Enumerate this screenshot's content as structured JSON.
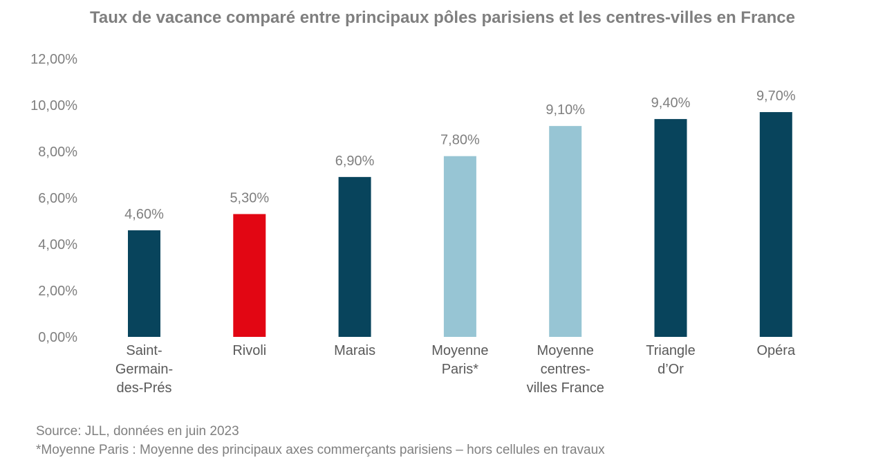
{
  "chart_data": {
    "type": "bar",
    "title": "Taux de vacance comparé entre principaux pôles parisiens et les centres-villes en France",
    "xlabel": "",
    "ylabel": "",
    "ylim": [
      0,
      12
    ],
    "yticks": [
      0,
      2,
      4,
      6,
      8,
      10,
      12
    ],
    "ytick_labels": [
      "0,00%",
      "2,00%",
      "4,00%",
      "6,00%",
      "8,00%",
      "10,00%",
      "12,00%"
    ],
    "grid": false,
    "categories": [
      [
        "Saint-",
        "Germain-",
        "des-Prés"
      ],
      [
        "Rivoli"
      ],
      [
        "Marais"
      ],
      [
        "Moyenne",
        "Paris*"
      ],
      [
        "Moyenne",
        "centres-",
        "villes France"
      ],
      [
        "Triangle",
        "d’Or"
      ],
      [
        "Opéra"
      ]
    ],
    "values": [
      4.6,
      5.3,
      6.9,
      7.8,
      9.1,
      9.4,
      9.7
    ],
    "data_labels": [
      "4,60%",
      "5,30%",
      "6,90%",
      "7,80%",
      "9,10%",
      "9,40%",
      "9,70%"
    ],
    "colors": [
      "#08445c",
      "#e20613",
      "#08445c",
      "#97c5d4",
      "#97c5d4",
      "#08445c",
      "#08445c"
    ]
  },
  "notes": {
    "source": "Source: JLL, données en juin 2023",
    "footnote": "*Moyenne Paris : Moyenne des principaux axes commerçants parisiens – hors cellules en travaux"
  },
  "style": {
    "text_color": "#7f7f7f",
    "label_color": "#595959"
  }
}
